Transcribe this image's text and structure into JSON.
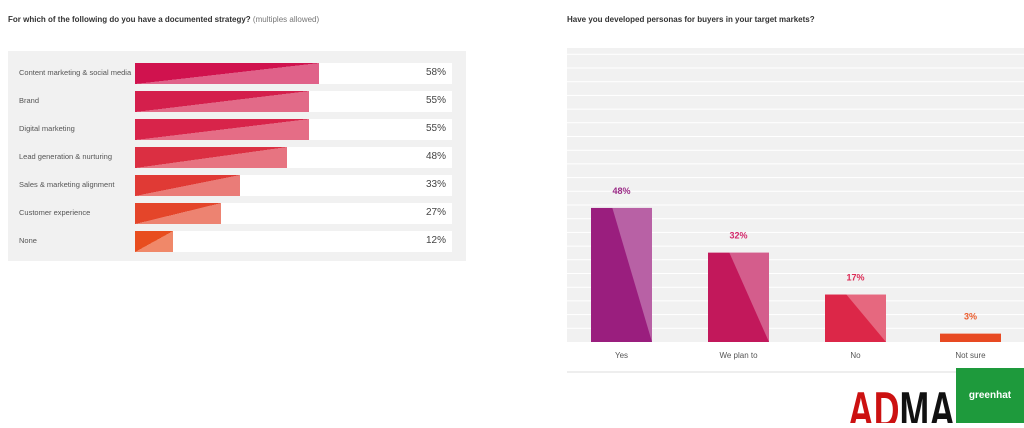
{
  "chart_data": [
    {
      "type": "bar",
      "orientation": "horizontal",
      "title": "For which of the following do you have a documented strategy?",
      "subtitle": "(multiples allowed)",
      "categories": [
        "Content marketing & social media",
        "Brand",
        "Digital marketing",
        "Lead generation & nurturing",
        "Sales & marketing alignment",
        "Customer experience",
        "None"
      ],
      "values": [
        58,
        55,
        55,
        48,
        33,
        27,
        12
      ],
      "value_labels": [
        "58%",
        "55%",
        "55%",
        "48%",
        "33%",
        "27%",
        "12%"
      ],
      "xlim": [
        0,
        100
      ],
      "colors": [
        "#d0124e",
        "#d41f4c",
        "#d8244a",
        "#db2f42",
        "#e03a35",
        "#e4452a",
        "#e84d1e"
      ],
      "grid": false
    },
    {
      "type": "bar",
      "orientation": "vertical",
      "title": "Have you developed personas for buyers in your target markets?",
      "categories": [
        "Yes",
        "We plan to",
        "No",
        "Not sure"
      ],
      "values": [
        48,
        32,
        17,
        3
      ],
      "value_labels": [
        "48%",
        "32%",
        "17%",
        "3%"
      ],
      "ylim": [
        0,
        100
      ],
      "colors": [
        "#9a1e7e",
        "#c2185b",
        "#dc2748",
        "#e84a22"
      ],
      "label_colors": [
        "#9a2a86",
        "#d3276a",
        "#dc2a55",
        "#ea5a2a"
      ],
      "grid": true
    }
  ],
  "logo": {
    "adma": "ADMA",
    "greenhat": "greenhat",
    "adma_red": "#cc1111",
    "green": "#1e9a3c"
  }
}
